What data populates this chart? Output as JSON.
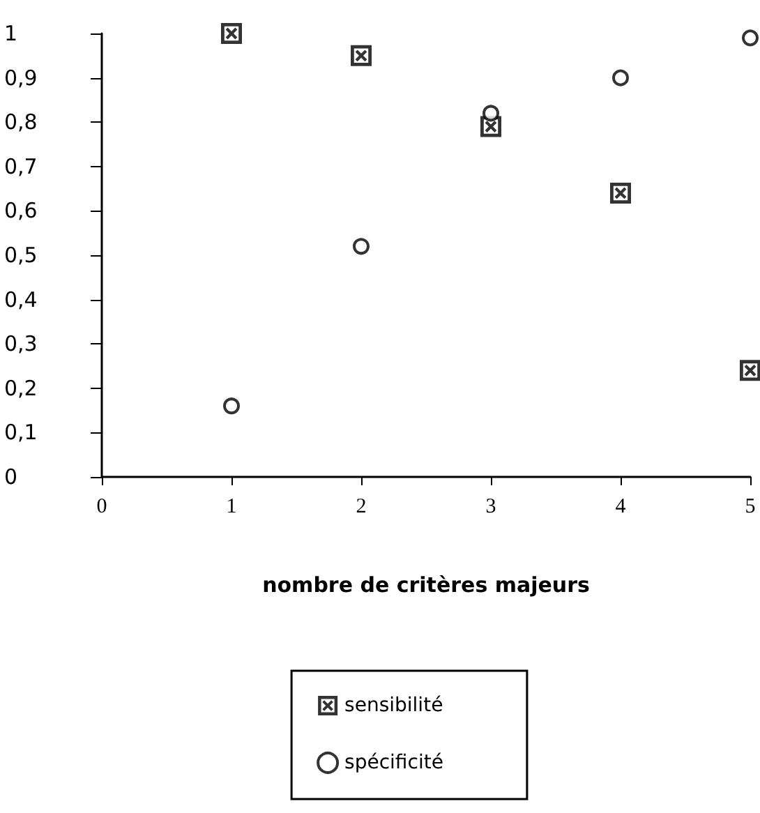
{
  "chart_data": {
    "type": "scatter",
    "xlabel": "nombre de critères majeurs",
    "x": [
      1,
      2,
      3,
      4,
      5
    ],
    "series": [
      {
        "name": "sensibilité",
        "color": "#000000",
        "marker": "square",
        "values": [
          1.0,
          0.95,
          0.79,
          0.64,
          0.24
        ]
      },
      {
        "name": "spécificité",
        "color": "#000000",
        "marker": "circle",
        "values": [
          0.16,
          0.52,
          0.82,
          0.9,
          0.99
        ]
      }
    ],
    "xlim": [
      0,
      5
    ],
    "xticks": [
      0,
      1,
      2,
      3,
      4,
      5
    ],
    "ylim": [
      0,
      1
    ],
    "yticks": [
      {
        "value": 0,
        "label": "0"
      },
      {
        "value": 0.1,
        "label": "0,1"
      },
      {
        "value": 0.2,
        "label": "0,2"
      },
      {
        "value": 0.3,
        "label": "0,3"
      },
      {
        "value": 0.4,
        "label": "0,4"
      },
      {
        "value": 0.5,
        "label": "0,5"
      },
      {
        "value": 0.6,
        "label": "0,6"
      },
      {
        "value": 0.7,
        "label": "0,7"
      },
      {
        "value": 0.8,
        "label": "0,8"
      },
      {
        "value": 0.9,
        "label": "0,9"
      },
      {
        "value": 1,
        "label": "1"
      }
    ],
    "grid": false,
    "legend": "bottom"
  }
}
